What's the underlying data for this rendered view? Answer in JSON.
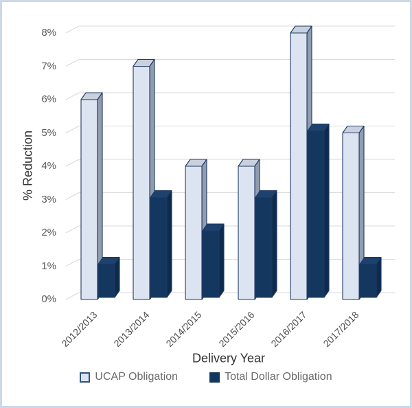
{
  "chart_data": {
    "type": "bar",
    "projection": "3d-clustered-column",
    "categories": [
      "2012/2013",
      "2013/2014",
      "2014/2015",
      "2015/2016",
      "2016/2017",
      "2017/2018"
    ],
    "series": [
      {
        "name": "UCAP Obligation",
        "values": [
          6,
          7,
          4,
          4,
          8,
          5
        ],
        "color": "#dce4f1",
        "top_color": "#c9d1de",
        "side_color": "#909dae",
        "border_color": "#1f3864"
      },
      {
        "name": "Total Dollar Obligation",
        "values": [
          1,
          3,
          2,
          3,
          5,
          1
        ],
        "color": "#14375f",
        "top_color": "#1d426e",
        "side_color": "#0d2b4b",
        "border_color": "#1f3864"
      }
    ],
    "title": "",
    "xlabel": "Delivery Year",
    "ylabel": "% Reduction",
    "yticks": [
      "0%",
      "1%",
      "2%",
      "3%",
      "4%",
      "5%",
      "6%",
      "7%",
      "8%"
    ],
    "ylim": [
      0,
      8
    ],
    "ytick_step": 1,
    "unit": "%",
    "grid": true,
    "legend_position": "bottom"
  },
  "colors": {
    "background": "#ffffff",
    "frame_border": "#ccd7e7",
    "gridline": "#d9d9d9",
    "y_tick_label": "#595959",
    "x_tick_label": "#4d4d4d",
    "axis_title": "#333333",
    "legend_text": "#6b6b6b",
    "bar_outline": "#1f3864",
    "legend_swatch_border_light": "#2e5380"
  }
}
